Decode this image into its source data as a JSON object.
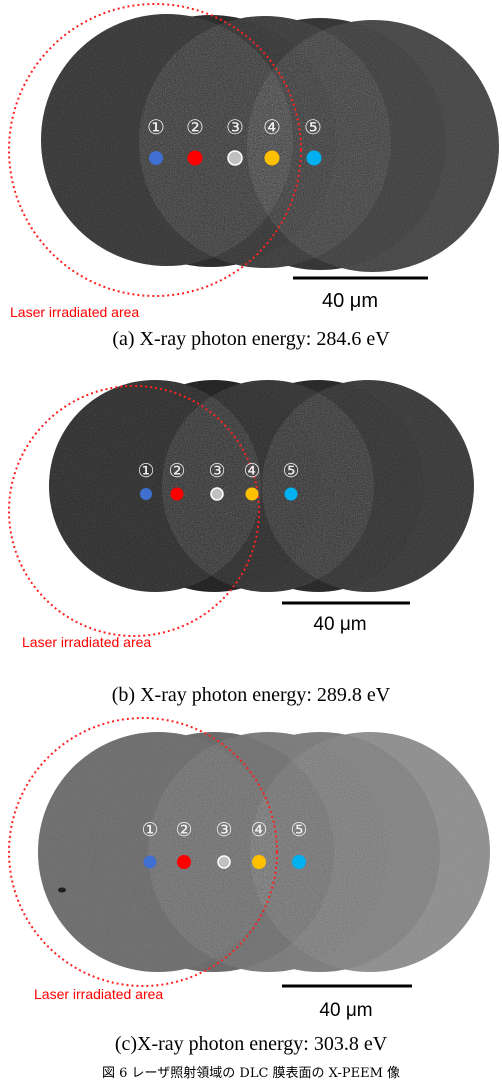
{
  "figure": {
    "caption": "図 6 レーザ照射領域の DLC 膜表面の X-PEEM 像"
  },
  "marker_colors": [
    "#3f6fd0",
    "#ff0000",
    "#c0c0c0",
    "#ffc000",
    "#00b0f0"
  ],
  "panels": [
    {
      "caption": "(a) X-ray photon energy:  284.6 eV",
      "laser_label": "Laser irradiated area",
      "scale_label": "40 μm",
      "markers": [
        {
          "label": "①"
        },
        {
          "label": "②"
        },
        {
          "label": "③"
        },
        {
          "label": "④"
        },
        {
          "label": "⑤"
        }
      ]
    },
    {
      "caption": "(b) X-ray photon energy:  289.8 eV",
      "laser_label": "Laser irradiated area",
      "scale_label": "40 μm",
      "markers": [
        {
          "label": "①"
        },
        {
          "label": "②"
        },
        {
          "label": "③"
        },
        {
          "label": "④"
        },
        {
          "label": "⑤"
        }
      ]
    },
    {
      "caption": "(c)X-ray photon energy: 303.8 eV",
      "laser_label": "Laser irradiated area",
      "scale_label": "40 μm",
      "markers": [
        {
          "label": "①"
        },
        {
          "label": "②"
        },
        {
          "label": "③"
        },
        {
          "label": "④"
        },
        {
          "label": "⑤"
        }
      ]
    }
  ]
}
